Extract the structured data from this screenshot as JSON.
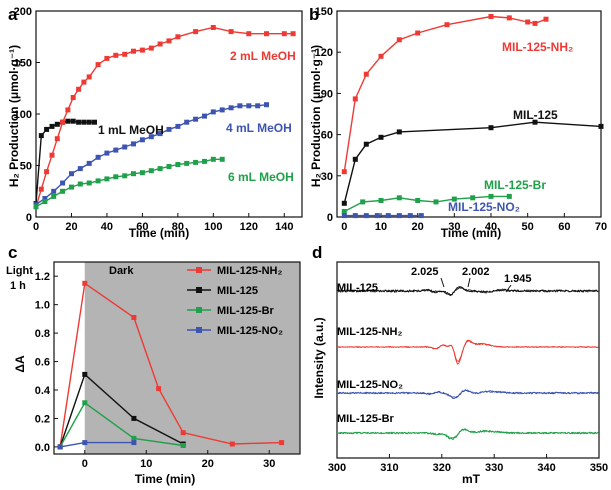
{
  "colors": {
    "red": "#ee3a34",
    "black": "#111111",
    "blue": "#3d55b0",
    "green": "#20a04a",
    "dark_band": "#b4b4b4"
  },
  "panels": {
    "a": {
      "label": "a",
      "xlabel": "Time (min)",
      "ylabel": "H₂ Production (μmol·g⁻¹)"
    },
    "b": {
      "label": "b",
      "xlabel": "Time (min)",
      "ylabel": "H₂ Production (μmol·g⁻¹)"
    },
    "c": {
      "label": "c",
      "xlabel": "Time (min)",
      "ylabel": "ΔA",
      "light_label": "Light",
      "light_duration": "1 h",
      "dark_label": "Dark"
    },
    "d": {
      "label": "d",
      "xlabel": "mT",
      "ylabel": "Intensity (a.u.)"
    }
  },
  "chart_data": [
    {
      "panel": "a",
      "type": "line",
      "xlim": [
        0,
        150
      ],
      "ylim": [
        0,
        200
      ],
      "xticks": [
        0,
        20,
        40,
        60,
        80,
        100,
        120,
        140
      ],
      "yticks": [
        0,
        50,
        100,
        150,
        200
      ],
      "series": [
        {
          "name": "1 mL MeOH",
          "color": "#111111",
          "x": [
            0,
            3,
            6,
            9,
            12,
            15,
            18,
            21,
            24,
            27,
            30,
            33
          ],
          "y": [
            13,
            79,
            85,
            88,
            90,
            92,
            93,
            93,
            92,
            92,
            92,
            92
          ]
        },
        {
          "name": "2 mL MeOH",
          "color": "#ee3a34",
          "x": [
            0,
            3,
            6,
            9,
            12,
            15,
            18,
            21,
            24,
            27,
            30,
            35,
            40,
            45,
            50,
            55,
            60,
            65,
            70,
            75,
            80,
            90,
            100,
            110,
            120,
            130,
            140,
            145
          ],
          "y": [
            10,
            27,
            44,
            60,
            76,
            92,
            104,
            116,
            124,
            131,
            136,
            148,
            154,
            157,
            158,
            161,
            162,
            164,
            168,
            171,
            175,
            180,
            184,
            180,
            178,
            178,
            178,
            178
          ]
        },
        {
          "name": "4 mL MeOH",
          "color": "#3d55b0",
          "x": [
            0,
            5,
            10,
            15,
            20,
            25,
            30,
            35,
            40,
            45,
            50,
            55,
            60,
            65,
            70,
            75,
            80,
            85,
            90,
            95,
            100,
            105,
            110,
            115,
            120,
            125,
            130
          ],
          "y": [
            12,
            18,
            25,
            33,
            42,
            47,
            52,
            58,
            62,
            65,
            68,
            71,
            75,
            78,
            81,
            85,
            88,
            92,
            95,
            98,
            102,
            104,
            106,
            108,
            108,
            108,
            109
          ]
        },
        {
          "name": "6 mL MeOH",
          "color": "#20a04a",
          "x": [
            0,
            5,
            10,
            15,
            20,
            25,
            30,
            35,
            40,
            45,
            50,
            55,
            60,
            65,
            70,
            75,
            80,
            85,
            90,
            95,
            100,
            105
          ],
          "y": [
            10,
            15,
            20,
            25,
            29,
            32,
            33,
            35,
            37,
            39,
            40,
            42,
            43,
            45,
            47,
            49,
            51,
            52,
            53,
            54,
            56,
            56
          ]
        }
      ]
    },
    {
      "panel": "b",
      "type": "line",
      "xlim": [
        -2,
        70
      ],
      "ylim": [
        0,
        150
      ],
      "xticks": [
        0,
        10,
        20,
        30,
        40,
        50,
        60,
        70
      ],
      "yticks": [
        0,
        30,
        60,
        90,
        120,
        150
      ],
      "series": [
        {
          "name": "MIL-125-NH₂",
          "color": "#ee3a34",
          "x": [
            0,
            3,
            6,
            10,
            15,
            20,
            28,
            40,
            45,
            50,
            52,
            55
          ],
          "y": [
            33,
            86,
            104,
            117,
            129,
            134,
            140,
            146,
            145,
            142,
            141,
            144
          ]
        },
        {
          "name": "MIL-125",
          "color": "#111111",
          "x": [
            0,
            3,
            6,
            10,
            15,
            40,
            52,
            70
          ],
          "y": [
            10,
            42,
            53,
            58,
            62,
            65,
            69,
            66
          ]
        },
        {
          "name": "MIL-125-Br",
          "color": "#20a04a",
          "x": [
            0,
            5,
            10,
            15,
            20,
            25,
            30,
            35,
            40,
            45
          ],
          "y": [
            4,
            11,
            12,
            14,
            12,
            11,
            13,
            14,
            15,
            15
          ]
        },
        {
          "name": "MIL-125-NO₂",
          "color": "#3d55b0",
          "x": [
            0,
            3,
            6,
            9,
            12,
            15,
            18,
            21
          ],
          "y": [
            1,
            1,
            1,
            1,
            1,
            1,
            1,
            1
          ]
        }
      ]
    },
    {
      "panel": "c",
      "type": "line",
      "xlim": [
        -5,
        35
      ],
      "ylim": [
        -0.05,
        1.3
      ],
      "xticks": [
        0,
        10,
        20,
        30
      ],
      "yticks": [
        0.0,
        0.2,
        0.4,
        0.6,
        0.8,
        1.0,
        1.2
      ],
      "dark_region_start": 0,
      "series": [
        {
          "name": "MIL-125-NH₂",
          "color": "#ee3a34",
          "x": [
            -4,
            0,
            8,
            12,
            16,
            24,
            32
          ],
          "y": [
            0.0,
            1.15,
            0.91,
            0.41,
            0.1,
            0.02,
            0.03
          ]
        },
        {
          "name": "MIL-125",
          "color": "#111111",
          "x": [
            -4,
            0,
            8,
            16
          ],
          "y": [
            0.0,
            0.51,
            0.2,
            0.02
          ]
        },
        {
          "name": "MIL-125-Br",
          "color": "#20a04a",
          "x": [
            -4,
            0,
            8,
            16
          ],
          "y": [
            0.0,
            0.31,
            0.06,
            0.01
          ]
        },
        {
          "name": "MIL-125-NO₂",
          "color": "#3d55b0",
          "x": [
            -4,
            0,
            8
          ],
          "y": [
            0.0,
            0.03,
            0.03
          ]
        }
      ]
    },
    {
      "panel": "d",
      "type": "line",
      "xlim": [
        300,
        350
      ],
      "xticks": [
        300,
        310,
        320,
        330,
        340,
        350
      ],
      "g_values": [
        "2.025",
        "2.002",
        "1.945"
      ],
      "series": [
        {
          "name": "MIL-125",
          "color": "#111111"
        },
        {
          "name": "MIL-125-NH₂",
          "color": "#ee3a34"
        },
        {
          "name": "MIL-125-NO₂",
          "color": "#3d55b0"
        },
        {
          "name": "MIL-125-Br",
          "color": "#20a04a"
        }
      ]
    }
  ]
}
